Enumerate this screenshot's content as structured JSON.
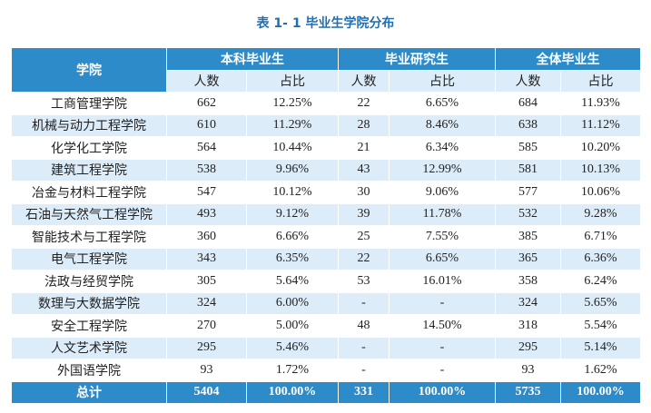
{
  "title": "表 1- 1  毕业生学院分布",
  "table": {
    "corner": "学院",
    "groups": [
      "本科毕业生",
      "毕业研究生",
      "全体毕业生"
    ],
    "subheaders": [
      "人数",
      "占比",
      "人数",
      "占比",
      "人数",
      "占比"
    ],
    "rows": [
      [
        "工商管理学院",
        "662",
        "12.25%",
        "22",
        "6.65%",
        "684",
        "11.93%"
      ],
      [
        "机械与动力工程学院",
        "610",
        "11.29%",
        "28",
        "8.46%",
        "638",
        "11.12%"
      ],
      [
        "化学化工学院",
        "564",
        "10.44%",
        "21",
        "6.34%",
        "585",
        "10.20%"
      ],
      [
        "建筑工程学院",
        "538",
        "9.96%",
        "43",
        "12.99%",
        "581",
        "10.13%"
      ],
      [
        "冶金与材料工程学院",
        "547",
        "10.12%",
        "30",
        "9.06%",
        "577",
        "10.06%"
      ],
      [
        "石油与天然气工程学院",
        "493",
        "9.12%",
        "39",
        "11.78%",
        "532",
        "9.28%"
      ],
      [
        "智能技术与工程学院",
        "360",
        "6.66%",
        "25",
        "7.55%",
        "385",
        "6.71%"
      ],
      [
        "电气工程学院",
        "343",
        "6.35%",
        "22",
        "6.65%",
        "365",
        "6.36%"
      ],
      [
        "法政与经贸学院",
        "305",
        "5.64%",
        "53",
        "16.01%",
        "358",
        "6.24%"
      ],
      [
        "数理与大数据学院",
        "324",
        "6.00%",
        "-",
        "-",
        "324",
        "5.65%"
      ],
      [
        "安全工程学院",
        "270",
        "5.00%",
        "48",
        "14.50%",
        "318",
        "5.54%"
      ],
      [
        "人文艺术学院",
        "295",
        "5.46%",
        "-",
        "-",
        "295",
        "5.14%"
      ],
      [
        "外国语学院",
        "93",
        "1.72%",
        "-",
        "-",
        "93",
        "1.62%"
      ]
    ],
    "total": [
      "总计",
      "5404",
      "100.00%",
      "331",
      "100.00%",
      "5735",
      "100.00%"
    ]
  }
}
